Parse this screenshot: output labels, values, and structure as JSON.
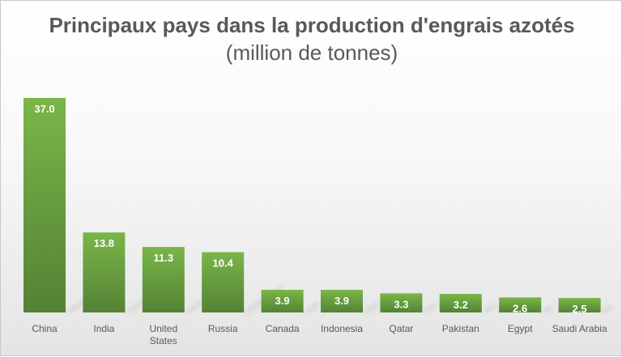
{
  "chart_data": {
    "type": "bar",
    "title_lines": [
      "Principaux pays dans la production d'engrais azotés",
      "(million de tonnes)"
    ],
    "categories": [
      [
        "China"
      ],
      [
        "India"
      ],
      [
        "United",
        "States"
      ],
      [
        "Russia"
      ],
      [
        "Canada"
      ],
      [
        "Indonesia"
      ],
      [
        "Qatar"
      ],
      [
        "Pakistan"
      ],
      [
        "Egypt"
      ],
      [
        "Saudi Arabia"
      ]
    ],
    "values": [
      37.0,
      13.8,
      11.3,
      10.4,
      3.9,
      3.9,
      3.3,
      3.2,
      2.6,
      2.5
    ],
    "value_labels": [
      "37.0",
      "13.8",
      "11.3",
      "10.4",
      "3.9",
      "3.9",
      "3.3",
      "3.2",
      "2.6",
      "2.5"
    ],
    "ylim": [
      0,
      37.0
    ],
    "grid": false,
    "legend": "none",
    "colors": {
      "bar_top": "#7ab648",
      "bar_bottom": "#548235",
      "title": "#595959",
      "label": "#595959"
    }
  }
}
